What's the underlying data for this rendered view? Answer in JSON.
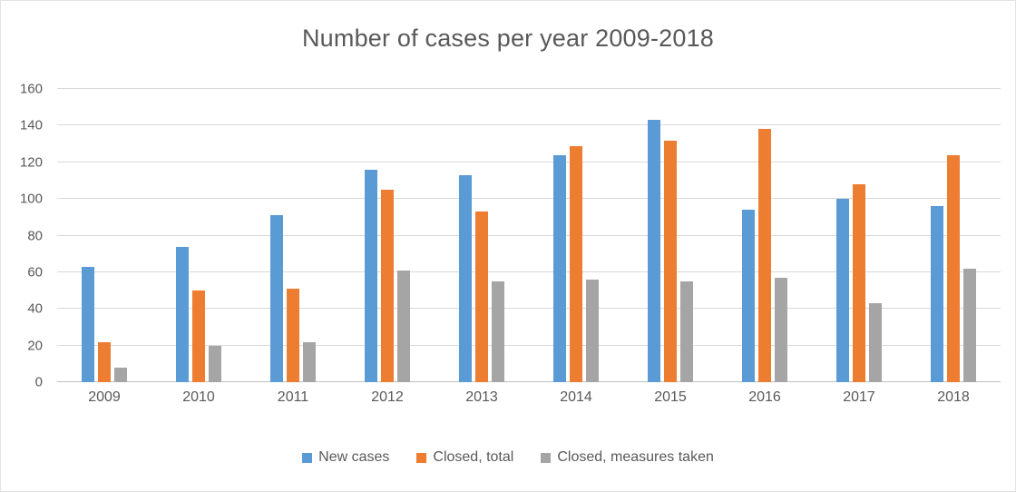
{
  "title": "Number of cases per year 2009-2018",
  "chart_data": {
    "type": "bar",
    "title": "Number of cases per year 2009-2018",
    "categories": [
      "2009",
      "2010",
      "2011",
      "2012",
      "2013",
      "2014",
      "2015",
      "2016",
      "2017",
      "2018"
    ],
    "series": [
      {
        "name": "New cases",
        "color": "#5b9bd5",
        "values": [
          63,
          74,
          91,
          116,
          113,
          124,
          143,
          94,
          100,
          96
        ]
      },
      {
        "name": "Closed, total",
        "color": "#ed7d31",
        "values": [
          22,
          50,
          51,
          105,
          93,
          129,
          132,
          138,
          108,
          124
        ]
      },
      {
        "name": "Closed, measures taken",
        "color": "#a5a5a5",
        "values": [
          8,
          20,
          22,
          61,
          55,
          56,
          55,
          57,
          43,
          62
        ]
      }
    ],
    "xlabel": "",
    "ylabel": "",
    "ylim": [
      0,
      160
    ],
    "ytick_step": 20,
    "grid": true,
    "legend_position": "bottom"
  }
}
